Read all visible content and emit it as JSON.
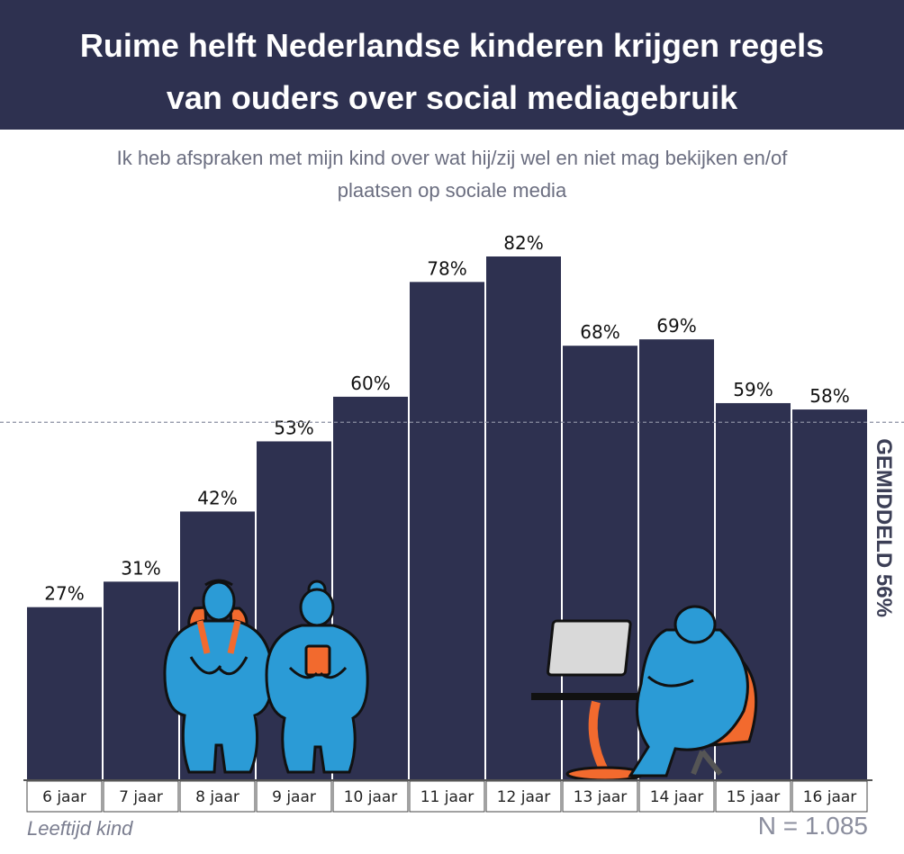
{
  "title_line1": "Ruime helft Nederlandse kinderen krijgen regels",
  "title_line2": "van ouders over social mediagebruik",
  "subtitle_line1": "Ik heb afspraken met mijn kind over wat hij/zij wel en niet mag bekijken en/of",
  "subtitle_line2": "plaatsen op sociale media",
  "x_axis_note": "Leeftijd kind",
  "sample_size": "N = 1.085",
  "colors": {
    "header": "#2e3150",
    "bar": "#2e3150",
    "figure_blue": "#2b9bd6",
    "accent_orange": "#f26a2e"
  },
  "chart_data": {
    "type": "bar",
    "categories": [
      "6 jaar",
      "7 jaar",
      "8 jaar",
      "9 jaar",
      "10 jaar",
      "11 jaar",
      "12 jaar",
      "13 jaar",
      "14 jaar",
      "15 jaar",
      "16 jaar"
    ],
    "values": [
      27,
      31,
      42,
      53,
      60,
      78,
      82,
      68,
      69,
      59,
      58
    ],
    "value_labels": [
      "27%",
      "31%",
      "42%",
      "53%",
      "60%",
      "78%",
      "82%",
      "68%",
      "69%",
      "59%",
      "58%"
    ],
    "unit": "%",
    "ylim": [
      0,
      82
    ],
    "grid": false,
    "reference_line": {
      "value": 56,
      "label": "GEMIDDELD 56%"
    },
    "xlabel": "Leeftijd kind",
    "ylabel": ""
  }
}
